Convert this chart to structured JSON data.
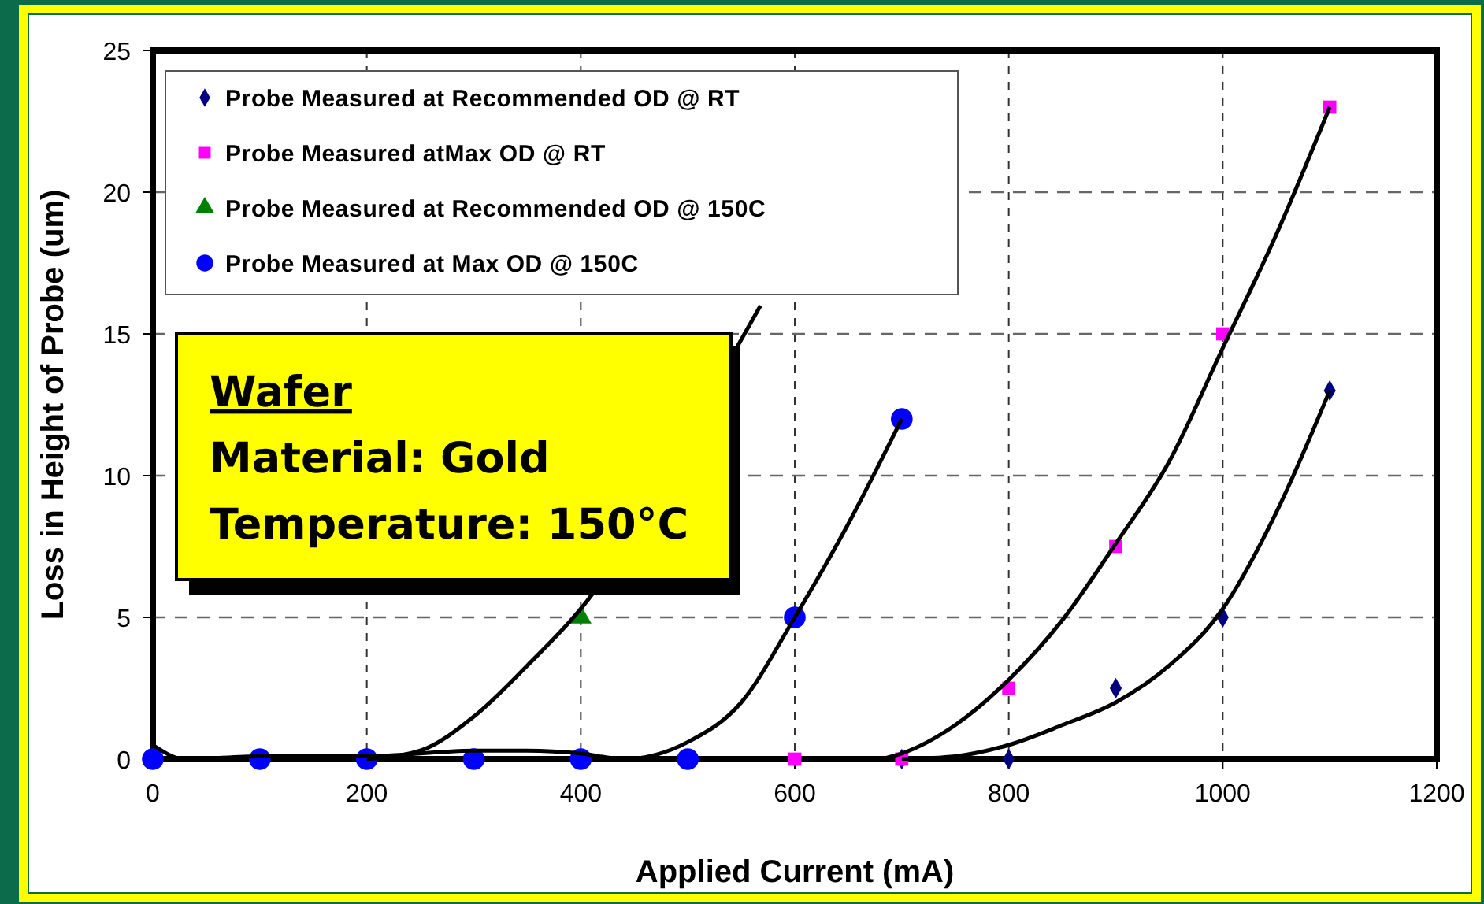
{
  "chart_data": {
    "type": "scatter",
    "xlabel": "Applied Current (mA)",
    "ylabel": "Loss in Height of Probe (um)",
    "xlim": [
      0,
      1200
    ],
    "xticks": [
      0,
      200,
      400,
      600,
      800,
      1000,
      1200
    ],
    "ylim": [
      0,
      25
    ],
    "yticks": [
      0,
      5,
      10,
      15,
      20,
      25
    ],
    "grid": true,
    "legend": "top left",
    "annotations": [
      "Wafer",
      "Material: Gold",
      "Temperature: 150°C"
    ],
    "series": [
      {
        "name": "Probe Measured at Recommended OD @ RT",
        "color": "#000080",
        "marker": "diamond",
        "x": [
          700,
          800,
          900,
          1000,
          1100
        ],
        "values": [
          0,
          0,
          2.5,
          5,
          13
        ]
      },
      {
        "name": "Probe Measured atMax OD @ RT",
        "color": "#ff00ff",
        "marker": "square",
        "x": [
          600,
          700,
          800,
          900,
          1000,
          1100
        ],
        "values": [
          0,
          0,
          2.5,
          7.5,
          15,
          23
        ]
      },
      {
        "name": "Probe Measured at Recommended OD @ 150C",
        "color": "#008000",
        "marker": "triangle",
        "x": [
          400
        ],
        "values": [
          5
        ]
      },
      {
        "name": "Probe Measured at Max OD @ 150C",
        "color": "#0000ff",
        "marker": "circle",
        "x": [
          0,
          100,
          200,
          300,
          400,
          500,
          600,
          700
        ],
        "values": [
          0,
          0,
          0,
          0,
          0,
          0,
          5,
          12
        ]
      },
      {
        "type": "line",
        "color": "#000000",
        "marker": "none",
        "x": [
          700,
          750,
          800,
          850,
          900,
          950,
          1000,
          1050,
          1100
        ],
        "values": [
          0,
          0.1,
          0.5,
          1.2,
          2,
          3.3,
          5.3,
          8.7,
          13
        ]
      },
      {
        "type": "line",
        "color": "#000000",
        "marker": "none",
        "x": [
          680,
          700,
          750,
          800,
          850,
          900,
          950,
          1000,
          1050,
          1100
        ],
        "values": [
          0,
          0.2,
          1.2,
          2.8,
          4.9,
          7.6,
          10.5,
          14.5,
          18.5,
          23
        ]
      },
      {
        "type": "line",
        "color": "#000000",
        "marker": "none",
        "x": [
          200,
          250,
          300,
          350,
          400,
          550,
          568
        ],
        "values": [
          0,
          0.3,
          1.5,
          3.3,
          5.3,
          14.8,
          16
        ]
      },
      {
        "type": "line",
        "color": "#000000",
        "marker": "none",
        "x": [
          0,
          30,
          100,
          200,
          300,
          350,
          400,
          440,
          500,
          550,
          600,
          650,
          700
        ],
        "values": [
          0.5,
          0,
          0.1,
          0.1,
          0.3,
          0.3,
          0.2,
          0,
          0.6,
          2,
          5,
          8.3,
          12
        ]
      }
    ]
  }
}
